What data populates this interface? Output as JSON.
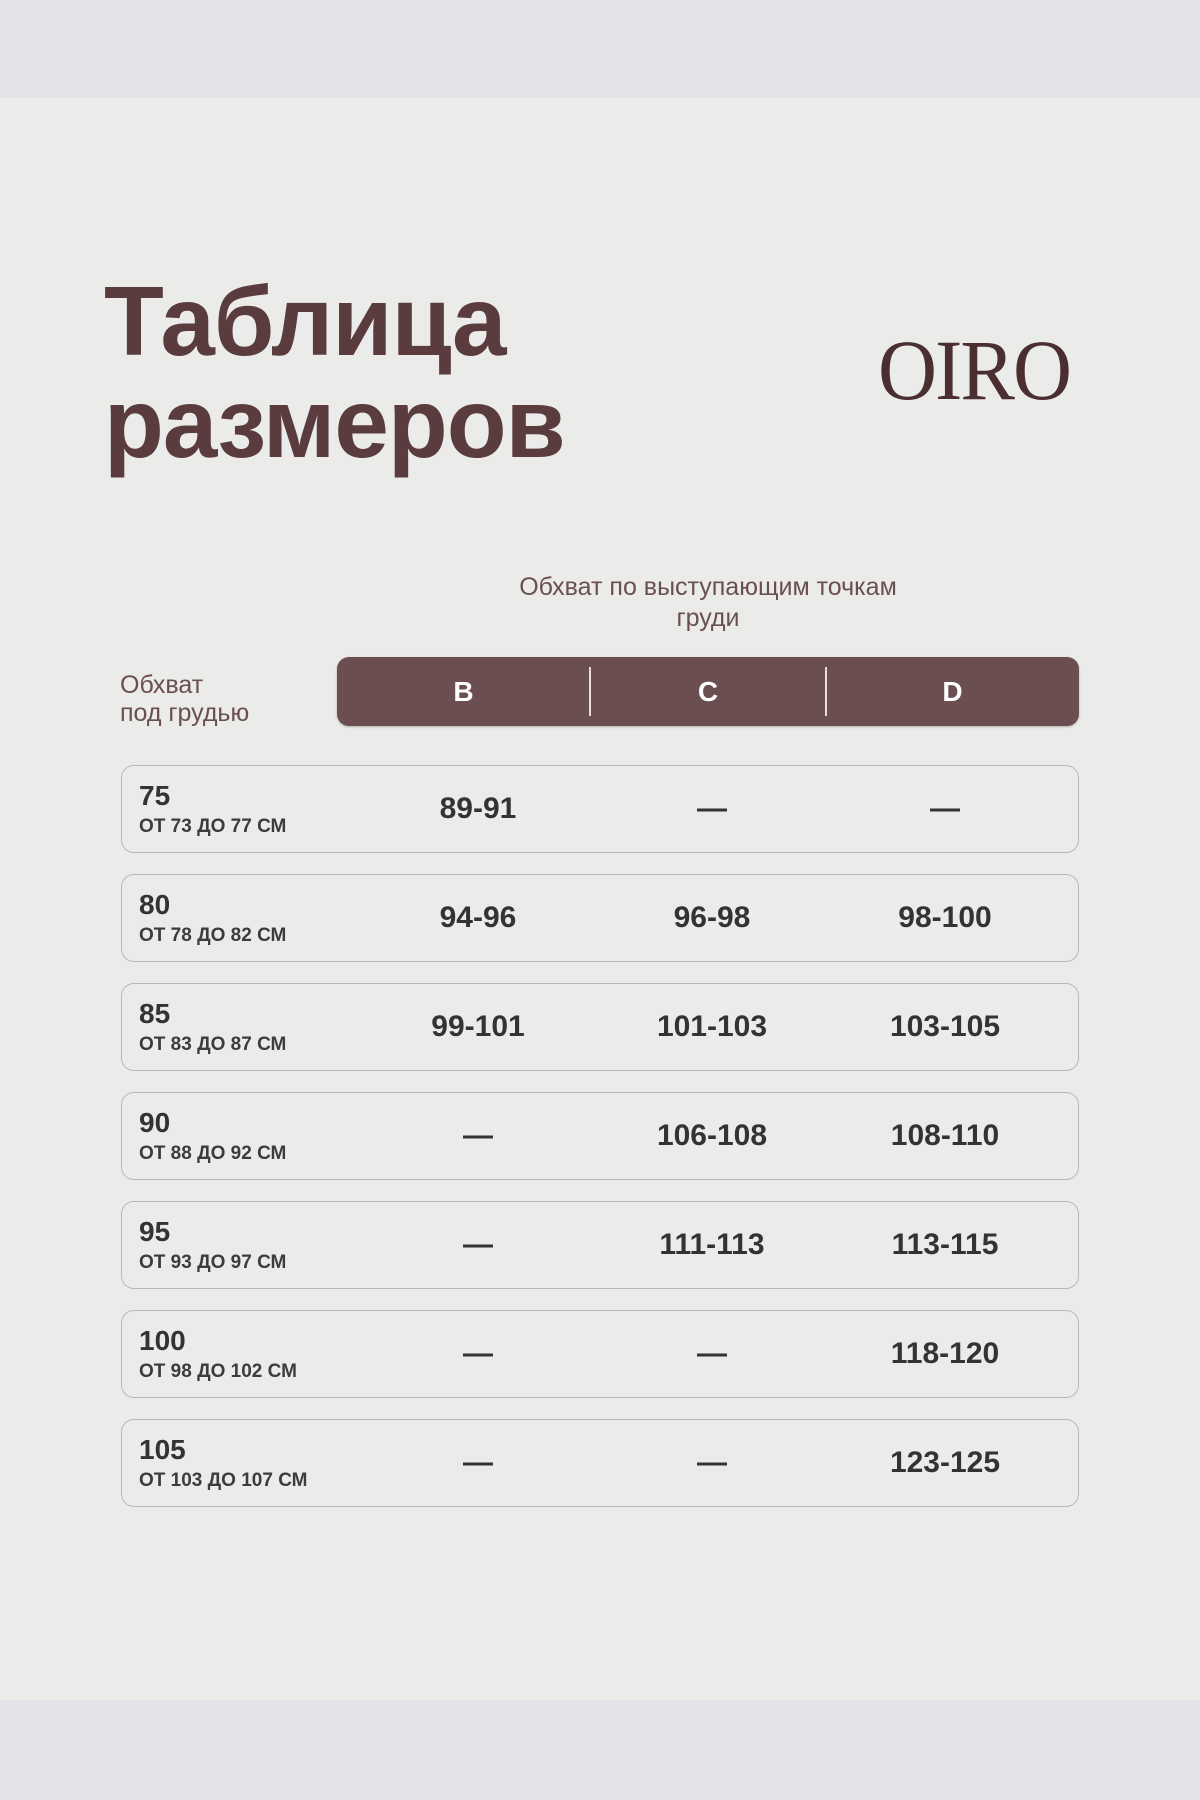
{
  "title_line1": "Таблица",
  "title_line2": "размеров",
  "brand": "OIRO",
  "column_caption": "Обхват по выступающим точкам груди",
  "row_caption_line1": "Обхват",
  "row_caption_line2": "под грудью",
  "accent_color": "#6b4e4f",
  "cups": [
    "B",
    "C",
    "D"
  ],
  "rows": [
    {
      "size": "75",
      "range": "ОТ 73 ДО 77 СМ",
      "values": [
        "89-91",
        "—",
        "—"
      ]
    },
    {
      "size": "80",
      "range": "ОТ 78 ДО 82 СМ",
      "values": [
        "94-96",
        "96-98",
        "98-100"
      ]
    },
    {
      "size": "85",
      "range": "ОТ 83 ДО 87 СМ",
      "values": [
        "99-101",
        "101-103",
        "103-105"
      ]
    },
    {
      "size": "90",
      "range": "ОТ 88 ДО 92 СМ",
      "values": [
        "—",
        "106-108",
        "108-110"
      ]
    },
    {
      "size": "95",
      "range": "ОТ 93 ДО 97 СМ",
      "values": [
        "—",
        "111-113",
        "113-115"
      ]
    },
    {
      "size": "100",
      "range": "ОТ 98 ДО 102 СМ",
      "values": [
        "—",
        "—",
        "118-120"
      ]
    },
    {
      "size": "105",
      "range": "ОТ 103 ДО 107 СМ",
      "values": [
        "—",
        "—",
        "123-125"
      ]
    }
  ]
}
